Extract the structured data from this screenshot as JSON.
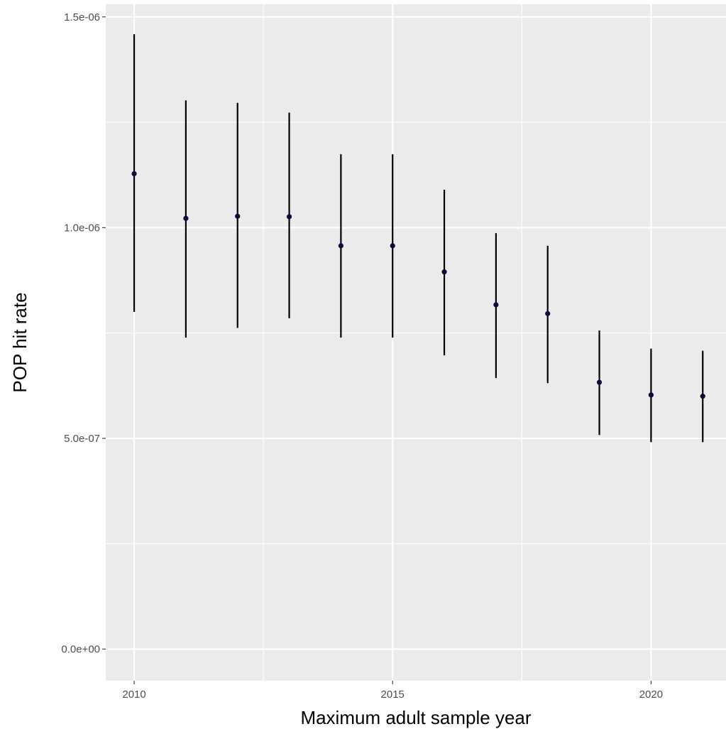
{
  "chart_data": {
    "type": "scatter",
    "title": "",
    "xlabel": "Maximum adult sample year",
    "ylabel": "POP hit rate",
    "xlim": [
      2009.45,
      2021.45
    ],
    "ylim": [
      -7.5e-08,
      1.53e-06
    ],
    "x_ticks": [
      2010,
      2015,
      2020
    ],
    "x_tick_labels": [
      "2010",
      "2015",
      "2020"
    ],
    "y_ticks": [
      0,
      5e-07,
      1e-06,
      1.5e-06
    ],
    "y_tick_labels": [
      "0.0e+00",
      "5.0e-07",
      "1.0e-06",
      "1.5e-06"
    ],
    "grid": true,
    "background": "#ebebeb",
    "gridline_color": "#ffffff",
    "point_color": "#0b0b3b",
    "errorbar_color": "#000000",
    "series": [
      {
        "x": [
          2010,
          2011,
          2012,
          2013,
          2014,
          2015,
          2016,
          2017,
          2018,
          2019,
          2020,
          2021
        ],
        "y": [
          1.128e-06,
          1.022e-06,
          1.027e-06,
          1.026e-06,
          9.57e-07,
          9.57e-07,
          8.95e-07,
          8.17e-07,
          7.96e-07,
          6.33e-07,
          6.03e-07,
          6e-07
        ],
        "ymin": [
          8e-07,
          7.39e-07,
          7.62e-07,
          7.85e-07,
          7.39e-07,
          7.39e-07,
          6.97e-07,
          6.43e-07,
          6.31e-07,
          5.08e-07,
          4.91e-07,
          4.91e-07
        ],
        "ymax": [
          1.459e-06,
          1.302e-06,
          1.296e-06,
          1.273e-06,
          1.174e-06,
          1.174e-06,
          1.09e-06,
          9.87e-07,
          9.57e-07,
          7.56e-07,
          7.13e-07,
          7.08e-07
        ]
      }
    ]
  }
}
